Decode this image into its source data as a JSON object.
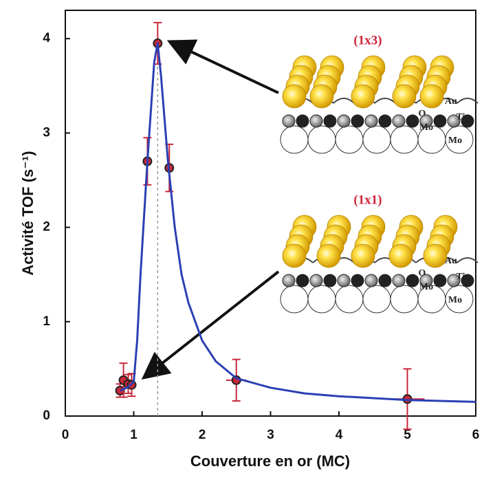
{
  "chart_data": {
    "type": "scatter",
    "xlabel": "Couverture en or (MC)",
    "ylabel": "Activité TOF (s⁻¹)",
    "xlim": [
      0,
      6
    ],
    "xticks": [
      0,
      1,
      2,
      3,
      4,
      5,
      6
    ],
    "ylim": [
      0,
      4.3
    ],
    "yticks": [
      0,
      1,
      2,
      3,
      4
    ],
    "reference_line_x": 1.35,
    "series": [
      {
        "kind": "points",
        "color": "#c8283a",
        "x": [
          0.8,
          0.85,
          0.92,
          0.97,
          1.2,
          1.35,
          1.52,
          2.5,
          5.0
        ],
        "values": [
          0.27,
          0.38,
          0.34,
          0.33,
          2.7,
          3.95,
          2.63,
          0.38,
          0.18
        ],
        "yerr": [
          0.07,
          0.18,
          0.1,
          0.12,
          0.25,
          0.22,
          0.25,
          0.22,
          0.32
        ],
        "xerr": [
          0.03,
          0.03,
          0.03,
          0.03,
          0.04,
          0.04,
          0.04,
          0.15,
          0.25
        ]
      },
      {
        "kind": "line",
        "color": "#2b3fb3",
        "x": [
          0.8,
          0.9,
          1.0,
          1.05,
          1.1,
          1.2,
          1.3,
          1.35,
          1.4,
          1.5,
          1.6,
          1.7,
          1.8,
          2.0,
          2.2,
          2.5,
          3.0,
          3.5,
          4.0,
          5.0,
          6.0
        ],
        "values": [
          0.27,
          0.3,
          0.36,
          0.8,
          1.5,
          2.7,
          3.75,
          3.95,
          3.6,
          2.7,
          2.0,
          1.5,
          1.2,
          0.8,
          0.58,
          0.4,
          0.3,
          0.24,
          0.21,
          0.17,
          0.15
        ]
      }
    ],
    "insets": [
      {
        "title": "(1x3)",
        "labels": [
          "Au",
          "Ti",
          "O",
          "Mo",
          "Mo"
        ]
      },
      {
        "title": "(1x1)",
        "labels": [
          "Au",
          "Ti",
          "O",
          "Mo",
          "Mo"
        ]
      }
    ]
  }
}
